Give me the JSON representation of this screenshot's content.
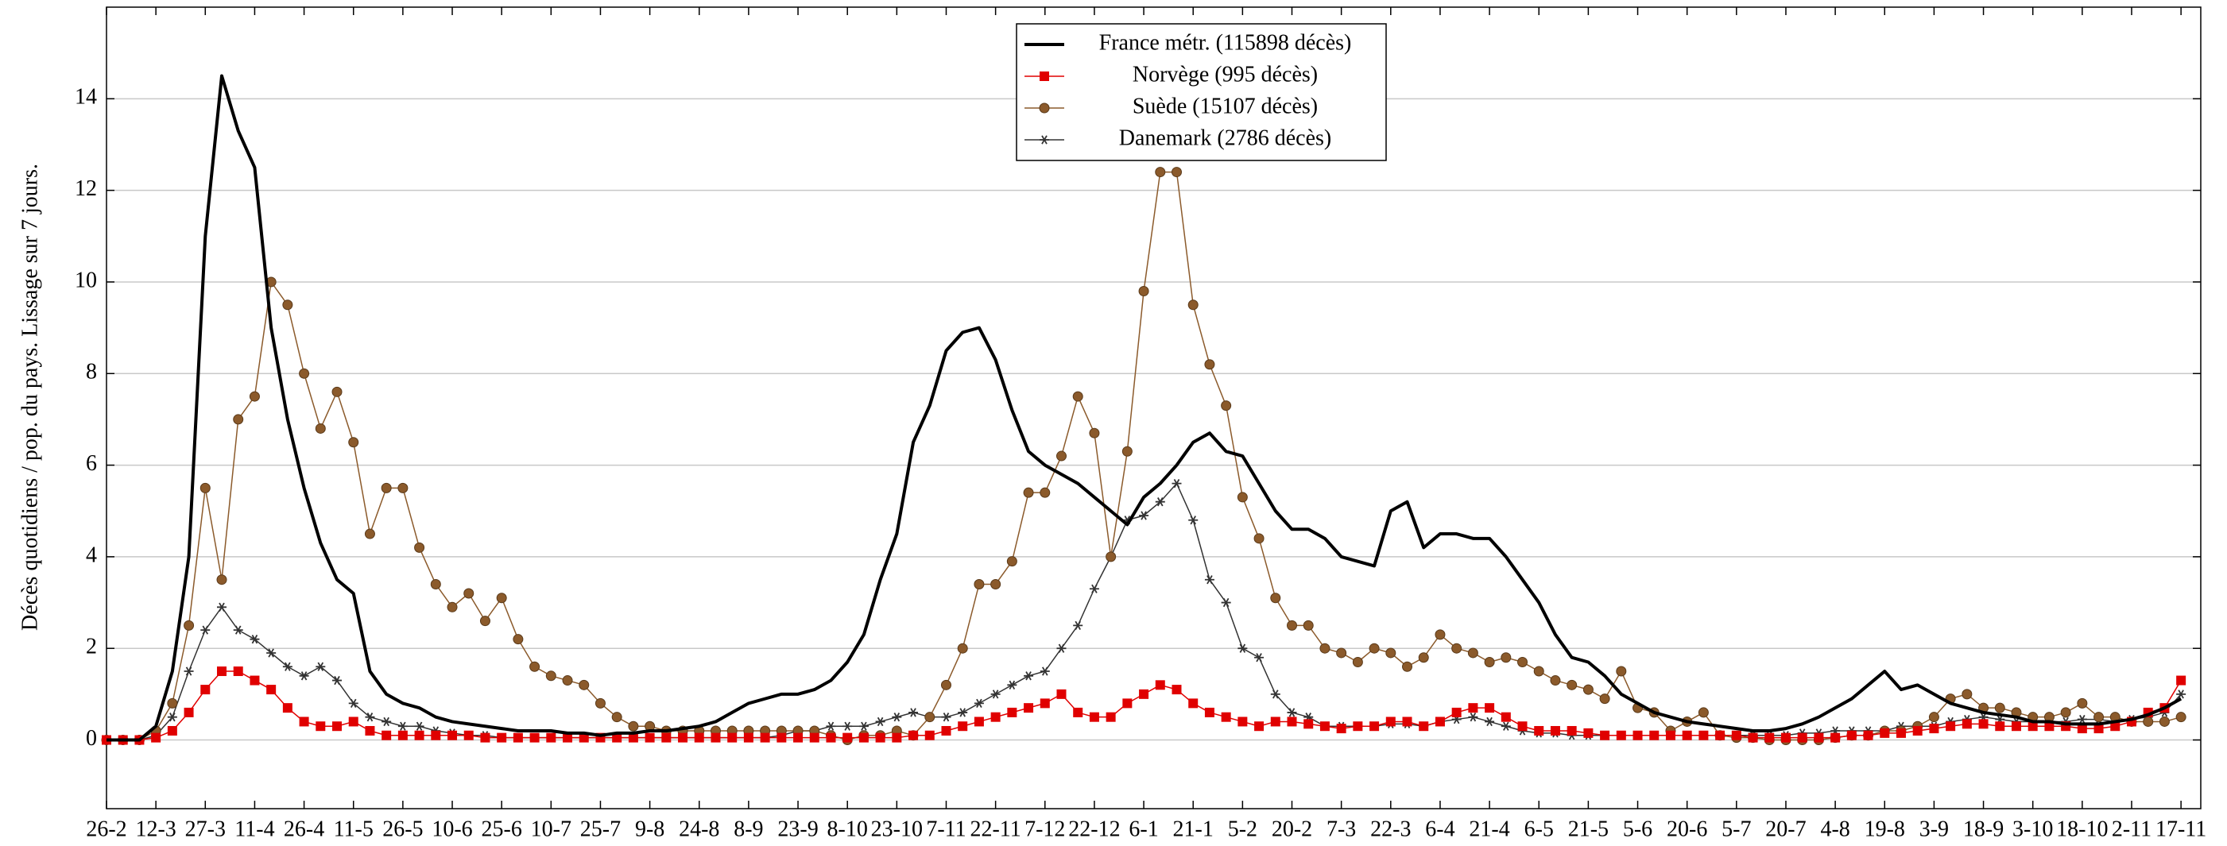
{
  "chart_data": {
    "type": "line",
    "ylabel": "Décès quotidiens / pop. du pays. Lissage sur 7 jours.",
    "xlim": [
      0,
      636
    ],
    "ylim": [
      -1.5,
      16
    ],
    "yticks": [
      0,
      2,
      4,
      6,
      8,
      10,
      12,
      14
    ],
    "xticks": [
      {
        "value": 0,
        "label": "26-2"
      },
      {
        "value": 15,
        "label": "12-3"
      },
      {
        "value": 30,
        "label": "27-3"
      },
      {
        "value": 45,
        "label": "11-4"
      },
      {
        "value": 60,
        "label": "26-4"
      },
      {
        "value": 75,
        "label": "11-5"
      },
      {
        "value": 90,
        "label": "26-5"
      },
      {
        "value": 105,
        "label": "10-6"
      },
      {
        "value": 120,
        "label": "25-6"
      },
      {
        "value": 135,
        "label": "10-7"
      },
      {
        "value": 150,
        "label": "25-7"
      },
      {
        "value": 165,
        "label": "9-8"
      },
      {
        "value": 180,
        "label": "24-8"
      },
      {
        "value": 195,
        "label": "8-9"
      },
      {
        "value": 210,
        "label": "23-9"
      },
      {
        "value": 225,
        "label": "8-10"
      },
      {
        "value": 240,
        "label": "23-10"
      },
      {
        "value": 255,
        "label": "7-11"
      },
      {
        "value": 270,
        "label": "22-11"
      },
      {
        "value": 285,
        "label": "7-12"
      },
      {
        "value": 300,
        "label": "22-12"
      },
      {
        "value": 315,
        "label": "6-1"
      },
      {
        "value": 330,
        "label": "21-1"
      },
      {
        "value": 345,
        "label": "5-2"
      },
      {
        "value": 360,
        "label": "20-2"
      },
      {
        "value": 375,
        "label": "7-3"
      },
      {
        "value": 390,
        "label": "22-3"
      },
      {
        "value": 405,
        "label": "6-4"
      },
      {
        "value": 420,
        "label": "21-4"
      },
      {
        "value": 435,
        "label": "6-5"
      },
      {
        "value": 450,
        "label": "21-5"
      },
      {
        "value": 465,
        "label": "5-6"
      },
      {
        "value": 480,
        "label": "20-6"
      },
      {
        "value": 495,
        "label": "5-7"
      },
      {
        "value": 510,
        "label": "20-7"
      },
      {
        "value": 525,
        "label": "4-8"
      },
      {
        "value": 540,
        "label": "19-8"
      },
      {
        "value": 555,
        "label": "3-9"
      },
      {
        "value": 570,
        "label": "18-9"
      },
      {
        "value": 585,
        "label": "3-10"
      },
      {
        "value": 600,
        "label": "18-10"
      },
      {
        "value": 615,
        "label": "2-11"
      },
      {
        "value": 630,
        "label": "17-11"
      }
    ],
    "grid": true,
    "legend": "top-center",
    "x": [
      0,
      5,
      10,
      15,
      20,
      25,
      30,
      35,
      40,
      45,
      50,
      55,
      60,
      65,
      70,
      75,
      80,
      85,
      90,
      95,
      100,
      105,
      110,
      115,
      120,
      125,
      130,
      135,
      140,
      145,
      150,
      155,
      160,
      165,
      170,
      175,
      180,
      185,
      190,
      195,
      200,
      205,
      210,
      215,
      220,
      225,
      230,
      235,
      240,
      245,
      250,
      255,
      260,
      265,
      270,
      275,
      280,
      285,
      290,
      295,
      300,
      305,
      310,
      315,
      320,
      325,
      330,
      335,
      340,
      345,
      350,
      355,
      360,
      365,
      370,
      375,
      380,
      385,
      390,
      395,
      400,
      405,
      410,
      415,
      420,
      425,
      430,
      435,
      440,
      445,
      450,
      455,
      460,
      465,
      470,
      475,
      480,
      485,
      490,
      495,
      500,
      505,
      510,
      515,
      520,
      525,
      530,
      535,
      540,
      545,
      550,
      555,
      560,
      565,
      570,
      575,
      580,
      585,
      590,
      595,
      600,
      605,
      610,
      615,
      620,
      625,
      630
    ],
    "series": [
      {
        "name": "France métr. (115898 décès)",
        "color": "#000000",
        "width": 4,
        "marker": "none",
        "values": [
          0,
          0,
          0,
          0.3,
          1.5,
          4,
          11,
          14.5,
          13.3,
          12.5,
          9,
          7,
          5.5,
          4.3,
          3.5,
          3.2,
          1.5,
          1.0,
          0.8,
          0.7,
          0.5,
          0.4,
          0.35,
          0.3,
          0.25,
          0.2,
          0.2,
          0.2,
          0.15,
          0.15,
          0.1,
          0.15,
          0.15,
          0.2,
          0.2,
          0.25,
          0.3,
          0.4,
          0.6,
          0.8,
          0.9,
          1.0,
          1.0,
          1.1,
          1.3,
          1.7,
          2.3,
          3.5,
          4.5,
          6.5,
          7.3,
          8.5,
          8.9,
          9.0,
          8.3,
          7.2,
          6.3,
          6.0,
          5.8,
          5.6,
          5.3,
          5.0,
          4.7,
          5.3,
          5.6,
          6.0,
          6.5,
          6.7,
          6.3,
          6.2,
          5.6,
          5.0,
          4.6,
          4.6,
          4.4,
          4.0,
          3.9,
          3.8,
          5.0,
          5.2,
          4.2,
          4.5,
          4.5,
          4.4,
          4.4,
          4.0,
          3.5,
          3.0,
          2.3,
          1.8,
          1.7,
          1.4,
          1.0,
          0.8,
          0.6,
          0.5,
          0.4,
          0.35,
          0.3,
          0.25,
          0.2,
          0.2,
          0.25,
          0.35,
          0.5,
          0.7,
          0.9,
          1.2,
          1.5,
          1.1,
          1.2,
          1.0,
          0.8,
          0.7,
          0.6,
          0.55,
          0.5,
          0.4,
          0.4,
          0.35,
          0.35,
          0.35,
          0.4,
          0.45,
          0.55,
          0.7,
          0.9
        ]
      },
      {
        "name": "Norvège (995 décès)",
        "color": "#e00000",
        "width": 1.5,
        "marker": "square",
        "values": [
          0,
          0,
          0,
          0.05,
          0.2,
          0.6,
          1.1,
          1.5,
          1.5,
          1.3,
          1.1,
          0.7,
          0.4,
          0.3,
          0.3,
          0.4,
          0.2,
          0.1,
          0.1,
          0.1,
          0.1,
          0.1,
          0.1,
          0.05,
          0.05,
          0.05,
          0.05,
          0.05,
          0.05,
          0.05,
          0.05,
          0.05,
          0.05,
          0.05,
          0.05,
          0.05,
          0.05,
          0.05,
          0.05,
          0.05,
          0.05,
          0.05,
          0.05,
          0.05,
          0.05,
          0.05,
          0.05,
          0.05,
          0.05,
          0.1,
          0.1,
          0.2,
          0.3,
          0.4,
          0.5,
          0.6,
          0.7,
          0.8,
          1.0,
          0.6,
          0.5,
          0.5,
          0.8,
          1.0,
          1.2,
          1.1,
          0.8,
          0.6,
          0.5,
          0.4,
          0.3,
          0.4,
          0.4,
          0.35,
          0.3,
          0.25,
          0.3,
          0.3,
          0.4,
          0.4,
          0.3,
          0.4,
          0.6,
          0.7,
          0.7,
          0.5,
          0.3,
          0.2,
          0.2,
          0.2,
          0.15,
          0.1,
          0.1,
          0.1,
          0.1,
          0.1,
          0.1,
          0.1,
          0.1,
          0.1,
          0.05,
          0.05,
          0.05,
          0.05,
          0.05,
          0.05,
          0.1,
          0.1,
          0.15,
          0.15,
          0.2,
          0.25,
          0.3,
          0.35,
          0.35,
          0.3,
          0.3,
          0.3,
          0.3,
          0.3,
          0.25,
          0.25,
          0.3,
          0.4,
          0.6,
          0.7,
          1.3
        ]
      },
      {
        "name": "Suède (15107 décès)",
        "color": "#8b5a2b",
        "width": 1.5,
        "marker": "circle",
        "values": [
          0,
          0,
          0,
          0.2,
          0.8,
          2.5,
          5.5,
          3.5,
          7,
          7.5,
          10,
          9.5,
          8,
          6.8,
          7.6,
          6.5,
          4.5,
          5.5,
          5.5,
          4.2,
          3.4,
          2.9,
          3.2,
          2.6,
          3.1,
          2.2,
          1.6,
          1.4,
          1.3,
          1.2,
          0.8,
          0.5,
          0.3,
          0.3,
          0.2,
          0.2,
          0.2,
          0.2,
          0.2,
          0.2,
          0.2,
          0.2,
          0.2,
          0.2,
          0.1,
          0,
          0.1,
          0.1,
          0.2,
          0.1,
          0.5,
          1.2,
          2.0,
          3.4,
          3.4,
          3.9,
          5.4,
          5.4,
          6.2,
          7.5,
          6.7,
          4.0,
          6.3,
          9.8,
          12.4,
          12.4,
          9.5,
          8.2,
          7.3,
          5.3,
          4.4,
          3.1,
          2.5,
          2.5,
          2.0,
          1.9,
          1.7,
          2.0,
          1.9,
          1.6,
          1.8,
          2.3,
          2.0,
          1.9,
          1.7,
          1.8,
          1.7,
          1.5,
          1.3,
          1.2,
          1.1,
          0.9,
          1.5,
          0.7,
          0.6,
          0.2,
          0.4,
          0.6,
          0.1,
          0.05,
          0.05,
          0,
          0,
          0,
          0,
          0.05,
          0.1,
          0.1,
          0.2,
          0.2,
          0.3,
          0.5,
          0.9,
          1.0,
          0.7,
          0.7,
          0.6,
          0.5,
          0.5,
          0.6,
          0.8,
          0.5,
          0.5,
          0.4,
          0.4,
          0.4,
          0.5
        ]
      },
      {
        "name": "Danemark (2786 décès)",
        "color": "#333333",
        "width": 1.5,
        "marker": "star",
        "values": [
          0,
          0,
          0,
          0.1,
          0.5,
          1.5,
          2.4,
          2.9,
          2.4,
          2.2,
          1.9,
          1.6,
          1.4,
          1.6,
          1.3,
          0.8,
          0.5,
          0.4,
          0.3,
          0.3,
          0.2,
          0.15,
          0.1,
          0.1,
          0.05,
          0.05,
          0.05,
          0.05,
          0.05,
          0.05,
          0.05,
          0.05,
          0.05,
          0.05,
          0.05,
          0.05,
          0.05,
          0.05,
          0.05,
          0.05,
          0.05,
          0.1,
          0.2,
          0.2,
          0.3,
          0.3,
          0.3,
          0.4,
          0.5,
          0.6,
          0.5,
          0.5,
          0.6,
          0.8,
          1.0,
          1.2,
          1.4,
          1.5,
          2.0,
          2.5,
          3.3,
          4.0,
          4.8,
          4.9,
          5.2,
          5.6,
          4.8,
          3.5,
          3.0,
          2.0,
          1.8,
          1.0,
          0.6,
          0.5,
          0.3,
          0.3,
          0.3,
          0.3,
          0.35,
          0.35,
          0.3,
          0.4,
          0.45,
          0.5,
          0.4,
          0.3,
          0.2,
          0.15,
          0.15,
          0.1,
          0.1,
          0.1,
          0.1,
          0.1,
          0.1,
          0.1,
          0.1,
          0.1,
          0.1,
          0.1,
          0.1,
          0.1,
          0.1,
          0.15,
          0.15,
          0.2,
          0.2,
          0.2,
          0.2,
          0.3,
          0.3,
          0.3,
          0.4,
          0.45,
          0.5,
          0.45,
          0.4,
          0.4,
          0.4,
          0.4,
          0.45,
          0.45,
          0.4,
          0.45,
          0.5,
          0.6,
          1.0
        ]
      }
    ]
  }
}
